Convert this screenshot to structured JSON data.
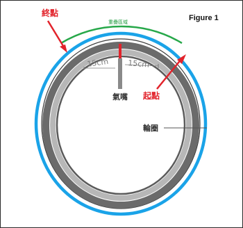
{
  "figure_label": "Figure 1",
  "labels": {
    "end_point": "終點",
    "start_point": "起點",
    "overlap_zone": "重疊區域",
    "valve": "氣嘴",
    "rim": "輪圈",
    "distance_left": "15cm",
    "distance_right": "15cm"
  },
  "colors": {
    "tape_blue": "#1aa3e8",
    "overlap_green": "#27a84a",
    "arrow_red": "#e2232b",
    "rim_dark": "#6b6b6b",
    "rim_mid": "#b7b7b7"
  }
}
